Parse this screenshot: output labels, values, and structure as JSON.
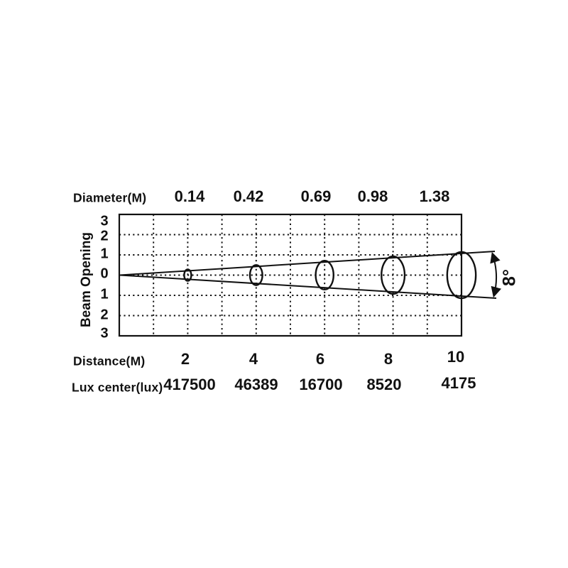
{
  "chart_data": {
    "type": "line",
    "subtype": "beam-angle-photometric-diagram",
    "title": "",
    "grid": "dashed",
    "beam_angle_label": "8°",
    "beam_angle_degrees": 8,
    "y_axis": {
      "label": "Beam Opening",
      "tick_labels": [
        "3",
        "2",
        "1",
        "0",
        "1",
        "2",
        "3"
      ],
      "range": [
        -3,
        3
      ]
    },
    "x_axis": {
      "label": "Distance(M)",
      "values": [
        2,
        4,
        6,
        8,
        10
      ]
    },
    "rows": [
      {
        "label": "Diameter(M)",
        "values": [
          "0.14",
          "0.42",
          "0.69",
          "0.98",
          "1.38"
        ]
      },
      {
        "label": "Distance(M)",
        "values": [
          "2",
          "4",
          "6",
          "8",
          "10"
        ]
      },
      {
        "label": "Lux center(lux)",
        "values": [
          "417500",
          "46389",
          "16700",
          "8520",
          "4175"
        ]
      }
    ],
    "series": [
      {
        "name": "Diameter(M)",
        "x": [
          2,
          4,
          6,
          8,
          10
        ],
        "values": [
          0.14,
          0.42,
          0.69,
          0.98,
          1.38
        ]
      },
      {
        "name": "Lux center(lux)",
        "x": [
          2,
          4,
          6,
          8,
          10
        ],
        "values": [
          417500,
          46389,
          16700,
          8520,
          4175
        ]
      }
    ]
  },
  "colors": {
    "ink": "#111111",
    "background": "#ffffff"
  }
}
